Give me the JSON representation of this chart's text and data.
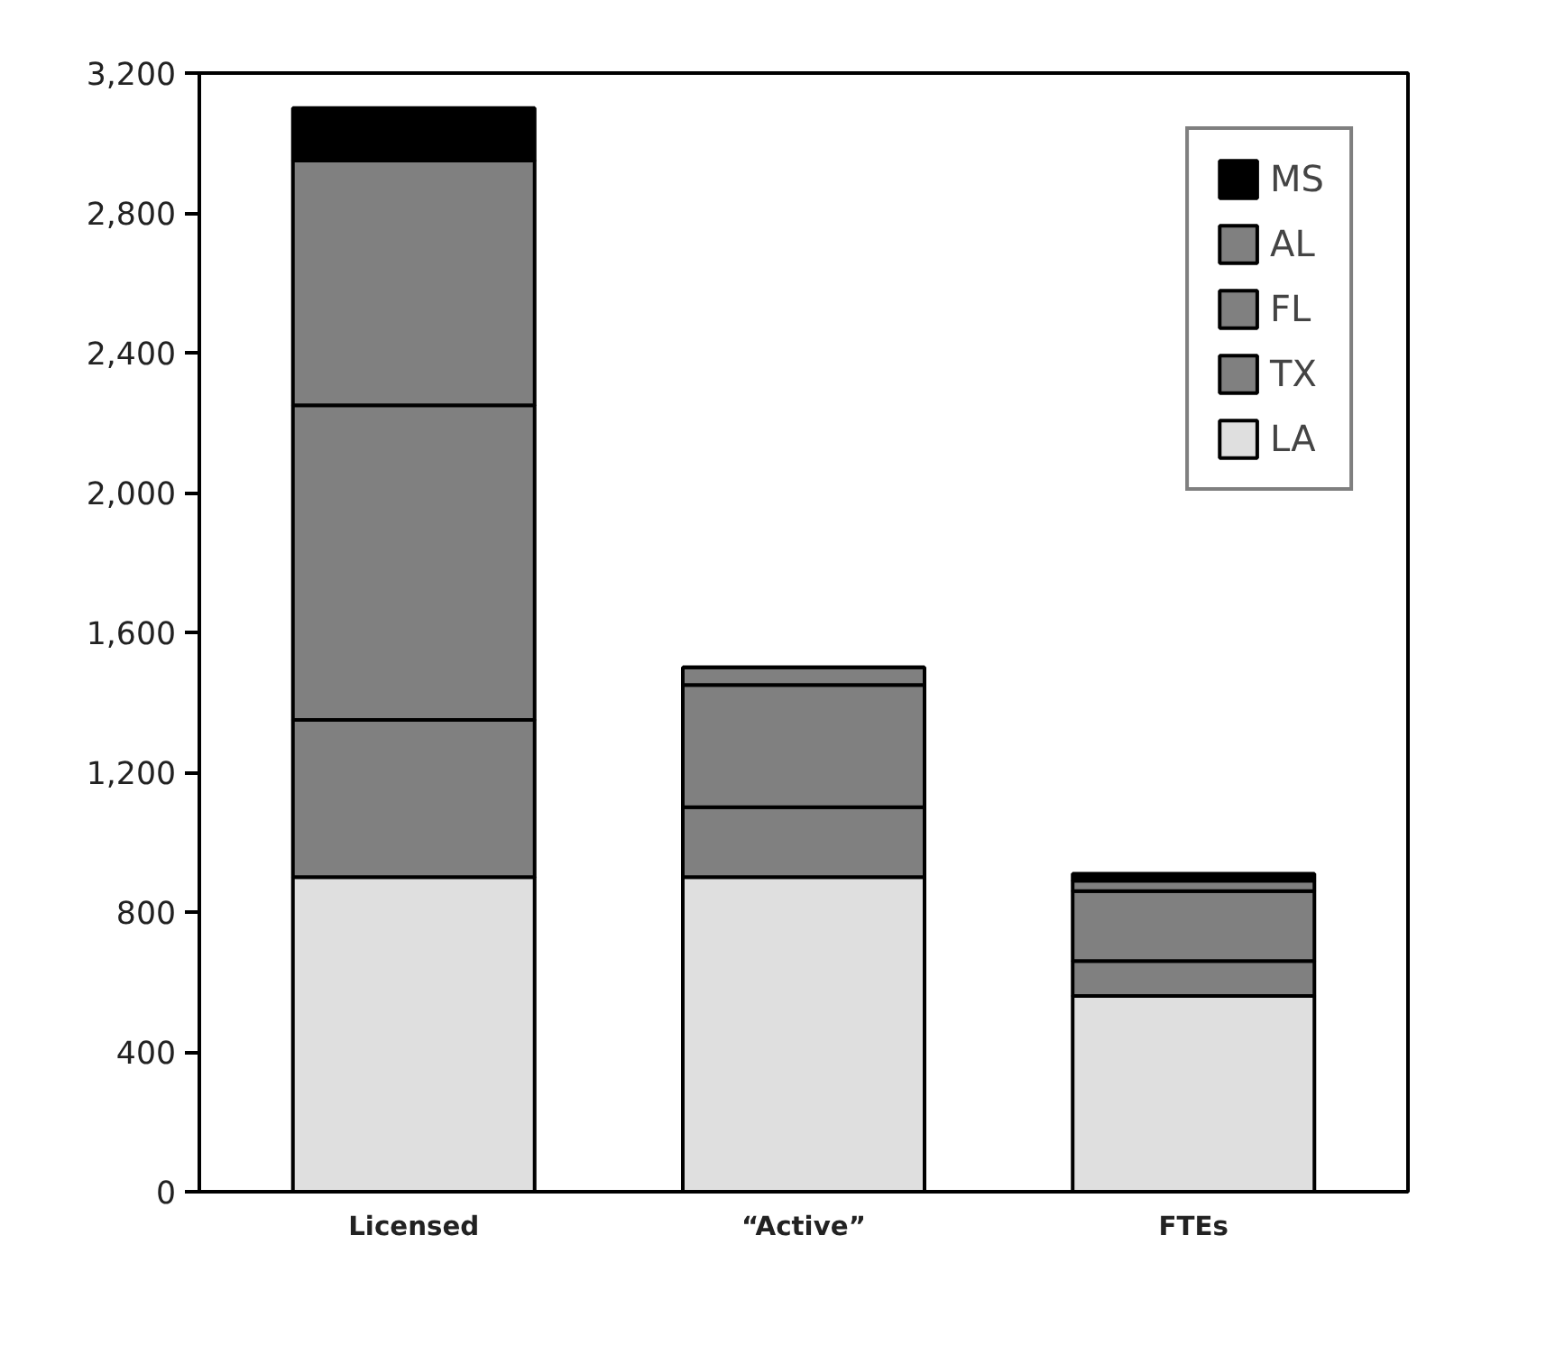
{
  "chart_data": {
    "type": "bar",
    "stacked": true,
    "categories": [
      "Licensed",
      "“Active”",
      "FTEs"
    ],
    "series": [
      {
        "name": "LA",
        "color": "#dfdfdf",
        "values": [
          900,
          900,
          560
        ]
      },
      {
        "name": "TX",
        "color": "#808080",
        "values": [
          450,
          200,
          100
        ]
      },
      {
        "name": "FL",
        "color": "#808080",
        "values": [
          900,
          350,
          200
        ]
      },
      {
        "name": "AL",
        "color": "#808080",
        "values": [
          700,
          50,
          30
        ]
      },
      {
        "name": "MS",
        "color": "#000000",
        "values": [
          150,
          0,
          20
        ]
      }
    ],
    "ylim": [
      0,
      3200
    ],
    "yticks": [
      0,
      400,
      800,
      {
        "value": 1200,
        "label": "1,200"
      },
      {
        "value": 1600,
        "label": "1,600"
      },
      {
        "value": 2000,
        "label": "2,000"
      },
      {
        "value": 2400,
        "label": "2,400"
      },
      {
        "value": 2800,
        "label": "2,800"
      },
      {
        "value": 3200,
        "label": "3,200"
      }
    ],
    "grid": false,
    "legend": "top right"
  }
}
